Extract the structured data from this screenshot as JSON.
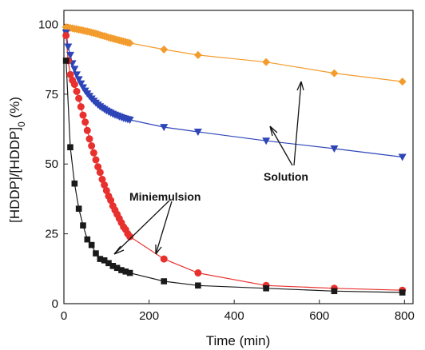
{
  "chart_data": {
    "type": "scatter",
    "xlabel": "Time (min)",
    "ylabel_main": "[HDDP]/[HDDP]",
    "ylabel_sub": "0",
    "ylabel_unit": " (%)",
    "xlim": [
      0,
      820
    ],
    "ylim": [
      0,
      105
    ],
    "x_ticks": [
      0,
      200,
      400,
      600,
      800
    ],
    "y_ticks": [
      0,
      25,
      50,
      75,
      100
    ],
    "annotations": {
      "miniemulsion": "Miniemulsion",
      "solution": "Solution"
    },
    "series": [
      {
        "marker": "diamond",
        "color": "#F39C2E",
        "x": [
          5,
          10,
          15,
          20,
          25,
          30,
          35,
          40,
          45,
          50,
          55,
          60,
          65,
          70,
          75,
          80,
          85,
          90,
          95,
          100,
          105,
          110,
          115,
          120,
          125,
          130,
          135,
          140,
          145,
          150,
          155,
          235,
          315,
          475,
          635,
          795
        ],
        "y": [
          99,
          98.9,
          98.7,
          98.6,
          98.4,
          98.3,
          98.1,
          98,
          97.8,
          97.6,
          97.5,
          97.3,
          97.1,
          96.9,
          96.7,
          96.5,
          96.2,
          96,
          95.8,
          95.6,
          95.3,
          95.1,
          94.9,
          94.7,
          94.5,
          94.3,
          94.1,
          93.9,
          93.7,
          93.5,
          93.3,
          91,
          89,
          86.5,
          82.5,
          79.5
        ]
      },
      {
        "marker": "triangle-down",
        "color": "#2E45B8",
        "x": [
          5,
          10,
          15,
          20,
          25,
          30,
          35,
          40,
          45,
          50,
          55,
          60,
          65,
          70,
          75,
          80,
          85,
          90,
          95,
          100,
          105,
          110,
          115,
          120,
          125,
          130,
          135,
          140,
          145,
          150,
          155,
          235,
          315,
          475,
          635,
          795
        ],
        "y": [
          97,
          92,
          89,
          86,
          84,
          82,
          80.3,
          78.8,
          77.4,
          76.2,
          75.2,
          74.3,
          73.4,
          72.6,
          71.9,
          71.2,
          70.6,
          70.1,
          69.6,
          69.1,
          68.7,
          68.3,
          67.9,
          67.6,
          67.3,
          67,
          66.7,
          66.4,
          66.2,
          66,
          65.8,
          63.2,
          61.5,
          58.3,
          55.5,
          52.5
        ]
      },
      {
        "marker": "circle",
        "color": "#E8312E",
        "x": [
          5,
          10,
          15,
          20,
          25,
          30,
          35,
          40,
          45,
          50,
          55,
          60,
          65,
          70,
          75,
          80,
          85,
          90,
          95,
          100,
          105,
          110,
          115,
          120,
          125,
          130,
          135,
          140,
          145,
          150,
          155,
          235,
          315,
          475,
          635,
          795
        ],
        "y": [
          96,
          87,
          82,
          80,
          78.5,
          76,
          73.5,
          70.5,
          67.5,
          65,
          62,
          59,
          56.5,
          54,
          51.5,
          49,
          47,
          44.5,
          42.5,
          40.5,
          38.5,
          37,
          35,
          33.5,
          32,
          30.5,
          29,
          27.5,
          26.5,
          25,
          24,
          16,
          11,
          6.5,
          5.5,
          4.8
        ]
      },
      {
        "marker": "square",
        "color": "#1a1a1a",
        "x": [
          5,
          15,
          25,
          35,
          45,
          55,
          65,
          75,
          85,
          95,
          105,
          115,
          125,
          135,
          145,
          155,
          235,
          315,
          475,
          635,
          795
        ],
        "y": [
          87,
          56,
          43,
          34,
          28,
          23,
          21,
          18,
          16,
          15.5,
          14.5,
          13.5,
          12.8,
          12,
          11.5,
          11,
          8,
          6.5,
          5.5,
          4.5,
          4
        ]
      }
    ]
  }
}
